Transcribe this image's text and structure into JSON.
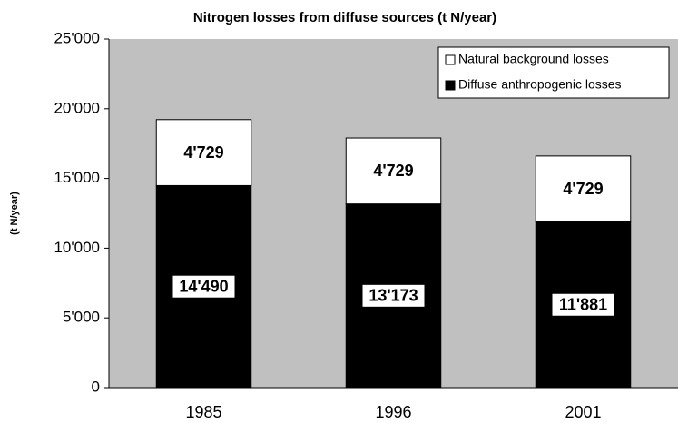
{
  "chart_data": {
    "type": "stacked_bar",
    "title": "Nitrogen losses from diffuse sources (t N/year)",
    "y_label": "(t N/year)",
    "categories": [
      "1985",
      "1996",
      "2001"
    ],
    "series": [
      {
        "name": "Diffuse anthropogenic losses",
        "color": "#000000",
        "values": [
          14490,
          13173,
          11881
        ],
        "value_labels": [
          "14'490",
          "13'173",
          "11'881"
        ]
      },
      {
        "name": "Natural background losses",
        "color": "#ffffff",
        "values": [
          4729,
          4729,
          4729
        ],
        "value_labels": [
          "4'729",
          "4'729",
          "4'729"
        ]
      }
    ],
    "ylim": [
      0,
      25000
    ],
    "yticks": [
      0,
      {
        "value": 5000,
        "label": "5'000"
      },
      {
        "value": 10000,
        "label": "10'000"
      },
      {
        "value": 15000,
        "label": "15'000"
      },
      {
        "value": 20000,
        "label": "20'000"
      },
      {
        "value": 25000,
        "label": "25'000"
      }
    ],
    "grid": false,
    "legend": "upper right"
  }
}
